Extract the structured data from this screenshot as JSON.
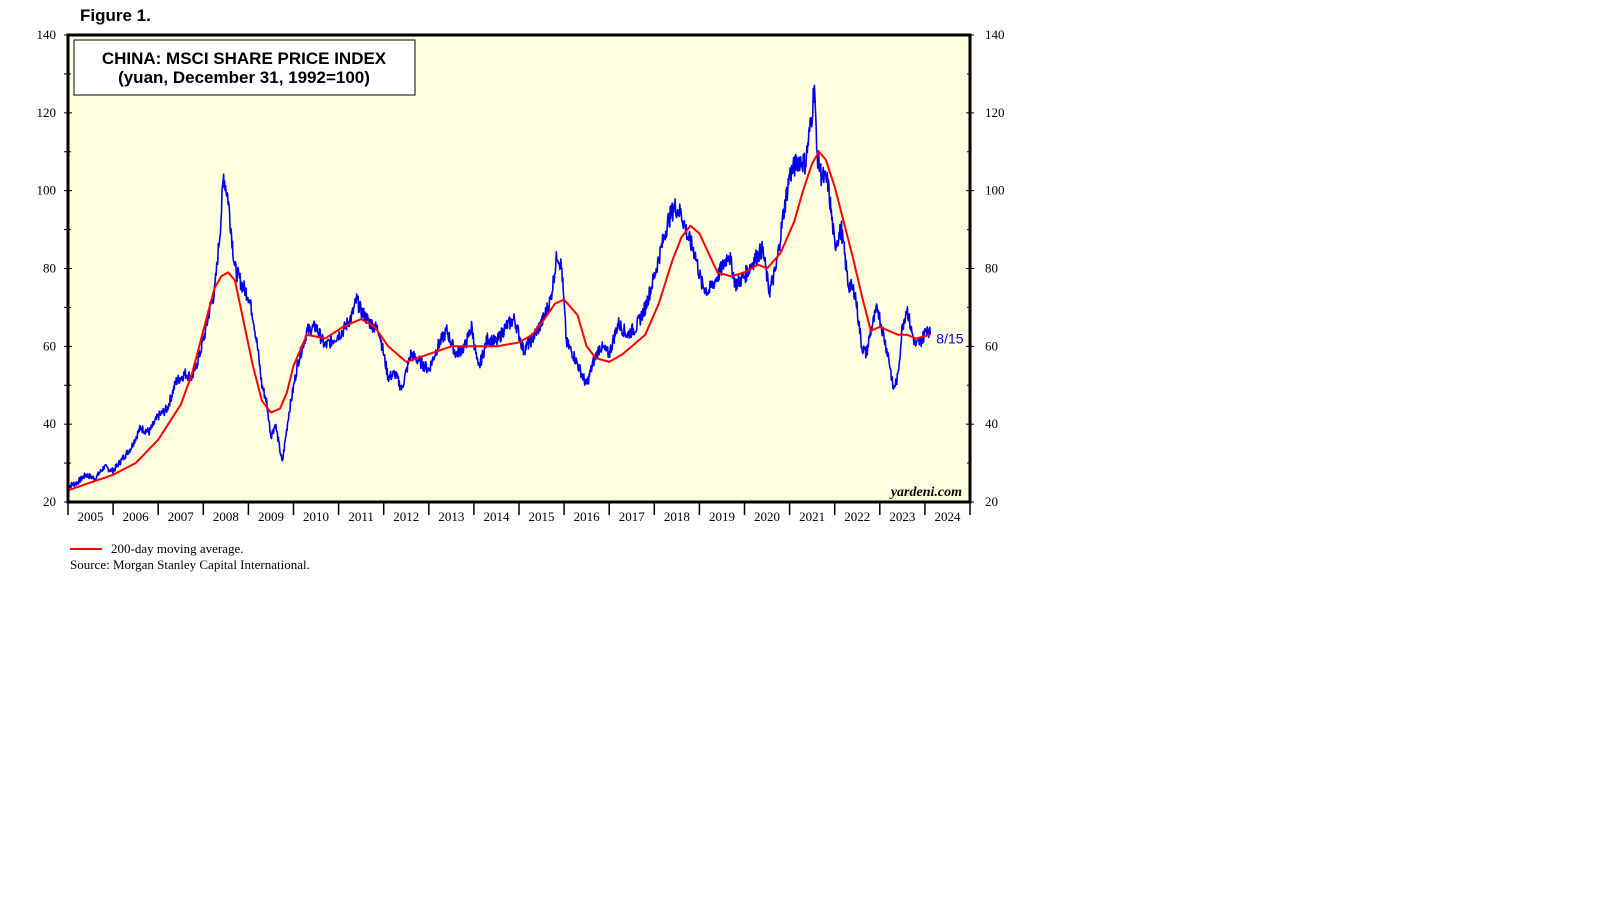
{
  "figure_label": "Figure 1.",
  "chart_data": {
    "type": "line",
    "title": "CHINA: MSCI SHARE PRICE INDEX",
    "subtitle": "(yuan, December 31, 1992=100)",
    "xlabel": "",
    "ylabel": "",
    "x_range": [
      2004.5,
      2024.5
    ],
    "ylim": [
      20,
      140
    ],
    "y_ticks": [
      20,
      40,
      60,
      80,
      100,
      120,
      140
    ],
    "x_tick_labels": [
      "2005",
      "2006",
      "2007",
      "2008",
      "2009",
      "2010",
      "2011",
      "2012",
      "2013",
      "2014",
      "2015",
      "2016",
      "2017",
      "2018",
      "2019",
      "2020",
      "2021",
      "2022",
      "2023",
      "2024"
    ],
    "grid": false,
    "background": "#ffffe0",
    "end_label": "8/15",
    "watermark": "yardeni.com",
    "series": [
      {
        "name": "",
        "color": "#0000ee",
        "x": [
          2004.5,
          2004.7,
          2004.9,
          2005.1,
          2005.3,
          2005.5,
          2005.7,
          2005.9,
          2006.1,
          2006.3,
          2006.5,
          2006.7,
          2006.9,
          2007.1,
          2007.25,
          2007.4,
          2007.55,
          2007.65,
          2007.75,
          2007.82,
          2007.88,
          2007.95,
          2008.05,
          2008.2,
          2008.35,
          2008.5,
          2008.6,
          2008.7,
          2008.8,
          2008.9,
          2009.0,
          2009.1,
          2009.25,
          2009.4,
          2009.6,
          2009.8,
          2010.0,
          2010.2,
          2010.4,
          2010.6,
          2010.8,
          2010.9,
          2011.0,
          2011.2,
          2011.4,
          2011.6,
          2011.75,
          2011.9,
          2012.1,
          2012.3,
          2012.5,
          2012.7,
          2012.9,
          2013.1,
          2013.3,
          2013.45,
          2013.6,
          2013.8,
          2014.0,
          2014.2,
          2014.4,
          2014.6,
          2014.8,
          2015.0,
          2015.2,
          2015.35,
          2015.45,
          2015.55,
          2015.7,
          2015.85,
          2016.0,
          2016.15,
          2016.3,
          2016.5,
          2016.7,
          2016.9,
          2017.1,
          2017.3,
          2017.5,
          2017.65,
          2017.8,
          2017.95,
          2018.1,
          2018.25,
          2018.4,
          2018.55,
          2018.7,
          2018.85,
          2019.0,
          2019.15,
          2019.3,
          2019.5,
          2019.7,
          2019.9,
          2020.05,
          2020.2,
          2020.35,
          2020.5,
          2020.7,
          2020.85,
          2021.0,
          2021.05,
          2021.1,
          2021.2,
          2021.35,
          2021.5,
          2021.65,
          2021.8,
          2021.95,
          2022.1,
          2022.2,
          2022.3,
          2022.45,
          2022.6,
          2022.7,
          2022.8,
          2022.9,
          2023.0,
          2023.1,
          2023.2,
          2023.3,
          2023.45,
          2023.55,
          2023.62
        ],
        "values": [
          24,
          25,
          27,
          26,
          29,
          28,
          31,
          34,
          39,
          38,
          42,
          44,
          51,
          53,
          52,
          57,
          64,
          70,
          74,
          83,
          91,
          104,
          98,
          80,
          76,
          73,
          68,
          60,
          50,
          46,
          37,
          40,
          30,
          43,
          56,
          64,
          65,
          60,
          62,
          64,
          68,
          72,
          69,
          66,
          64,
          52,
          53,
          49,
          58,
          56,
          54,
          60,
          64,
          58,
          60,
          65,
          54,
          62,
          61,
          65,
          67,
          59,
          62,
          66,
          72,
          84,
          80,
          61,
          58,
          54,
          50,
          56,
          60,
          58,
          66,
          63,
          65,
          70,
          78,
          85,
          92,
          96,
          94,
          88,
          84,
          76,
          74,
          77,
          80,
          84,
          76,
          78,
          82,
          85,
          74,
          80,
          93,
          104,
          108,
          107,
          120,
          128,
          110,
          104,
          102,
          86,
          90,
          76,
          74,
          60,
          58,
          64,
          70,
          62,
          57,
          49,
          52,
          65,
          70,
          64,
          60,
          62,
          65,
          63
        ],
        "end_label": "8/15"
      },
      {
        "name": "200-day moving average.",
        "color": "#ff0000",
        "x": [
          2004.5,
          2005.0,
          2005.5,
          2006.0,
          2006.5,
          2007.0,
          2007.25,
          2007.5,
          2007.75,
          2007.9,
          2008.05,
          2008.2,
          2008.4,
          2008.6,
          2008.8,
          2009.0,
          2009.2,
          2009.35,
          2009.5,
          2009.8,
          2010.2,
          2010.6,
          2011.0,
          2011.3,
          2011.6,
          2012.0,
          2012.5,
          2013.0,
          2013.5,
          2014.0,
          2014.5,
          2014.8,
          2015.0,
          2015.3,
          2015.5,
          2015.8,
          2016.0,
          2016.2,
          2016.5,
          2016.8,
          2017.0,
          2017.3,
          2017.6,
          2017.9,
          2018.1,
          2018.3,
          2018.5,
          2018.7,
          2018.9,
          2019.2,
          2019.5,
          2019.8,
          2020.0,
          2020.3,
          2020.6,
          2020.8,
          2021.0,
          2021.15,
          2021.3,
          2021.5,
          2021.7,
          2021.9,
          2022.1,
          2022.3,
          2022.5,
          2022.7,
          2022.9,
          2023.1,
          2023.3,
          2023.62
        ],
        "values": [
          23,
          25,
          27,
          30,
          36,
          45,
          53,
          64,
          75,
          78,
          79,
          77,
          66,
          55,
          46,
          43,
          44,
          48,
          55,
          63,
          62,
          65,
          67,
          65,
          60,
          56,
          58,
          60,
          60,
          60,
          61,
          63,
          66,
          71,
          72,
          68,
          60,
          57,
          56,
          58,
          60,
          63,
          71,
          82,
          88,
          91,
          89,
          84,
          79,
          78,
          79,
          81,
          80,
          84,
          92,
          100,
          107,
          110,
          108,
          101,
          92,
          83,
          73,
          64,
          65,
          64,
          63,
          63,
          62,
          63
        ]
      }
    ]
  },
  "legend": {
    "ma_label": "200-day moving average.",
    "ma_color": "#ff0000"
  },
  "source_note": "Source: Morgan Stanley Capital International."
}
